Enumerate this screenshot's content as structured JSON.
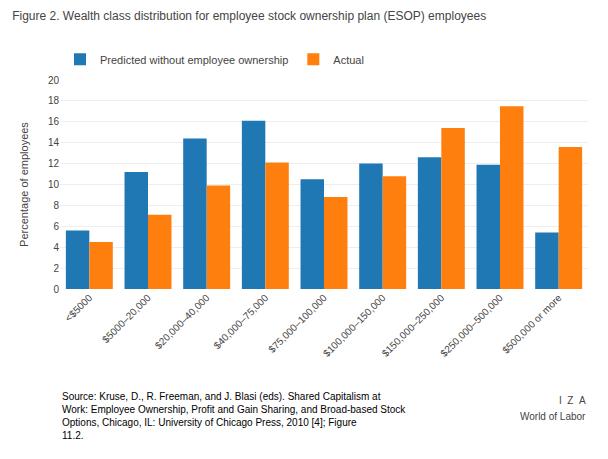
{
  "chart_data": {
    "type": "bar",
    "title": "Figure 2. Wealth class distribution for employee stock ownership plan (ESOP) employees",
    "categories": [
      "<$5000",
      "$5000–20,000",
      "$20,000–40,000",
      "$40,000–75,000",
      "$75,000–100,000",
      "$100,000–150,000",
      "$150,000–250,000",
      "$250,000–500,000",
      "$500,000 or more"
    ],
    "series": [
      {
        "name": "Predicted without employee ownership",
        "values": [
          5.6,
          11.2,
          14.4,
          16.1,
          10.5,
          12.0,
          12.6,
          11.9,
          5.4
        ]
      },
      {
        "name": "Actual",
        "values": [
          4.5,
          7.1,
          9.9,
          12.1,
          8.8,
          10.8,
          15.4,
          17.5,
          13.6
        ]
      }
    ],
    "ylabel": "Percentage of employees",
    "ylim": [
      0,
      20
    ],
    "yticks": [
      0,
      2,
      4,
      6,
      8,
      10,
      12,
      14,
      16,
      18,
      20
    ],
    "grid": true,
    "legend": "top",
    "annotations": [
      "Source: Kruse, D., R. Freeman, and J. Blasi (eds). Shared Capitalism at Work: Employee Ownership, Profit and Gain Sharing, and Broad-based Stock Options, Chicago, IL: University of Chicago Press, 2010 [4]; Figure 11.2.",
      "I  Z  A",
      "World of Labor"
    ]
  }
}
